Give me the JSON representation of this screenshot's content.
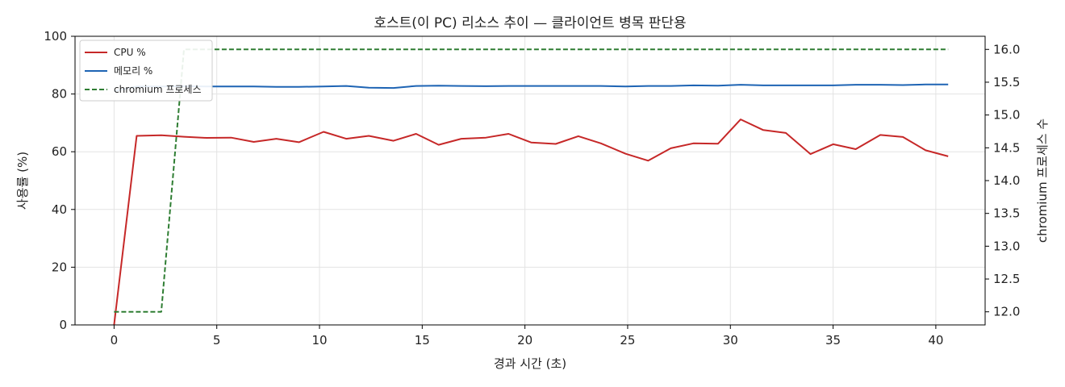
{
  "chart_data": {
    "type": "line",
    "title": "호스트(이 PC) 리소스 추이 — 클라이언트 병목 판단용",
    "xlabel": "경과 시간 (초)",
    "ylabel": "사용률 (%)",
    "y2label": "chromium 프로세스 수",
    "xlim": [
      -1.9,
      42.4
    ],
    "ylim": [
      0,
      100
    ],
    "y2lim": [
      11.8,
      16.2
    ],
    "xticks": [
      0,
      5,
      10,
      15,
      20,
      25,
      30,
      35,
      40
    ],
    "yticks": [
      0,
      20,
      40,
      60,
      80,
      100
    ],
    "y2ticks": [
      12.0,
      12.5,
      13.0,
      13.5,
      14.0,
      14.5,
      15.0,
      15.5,
      16.0
    ],
    "y2tick_labels": [
      "12.0",
      "12.5",
      "13.0",
      "13.5",
      "14.0",
      "14.5",
      "15.0",
      "15.5",
      "16.0"
    ],
    "grid": true,
    "legend_position": "top-left",
    "x": [
      0.0,
      1.1,
      2.3,
      3.4,
      4.5,
      5.7,
      6.8,
      7.9,
      9.0,
      10.2,
      11.3,
      12.4,
      13.6,
      14.7,
      15.8,
      16.9,
      18.1,
      19.2,
      20.3,
      21.5,
      22.6,
      23.7,
      24.9,
      26.0,
      27.1,
      28.2,
      29.4,
      30.5,
      31.6,
      32.7,
      33.9,
      35.0,
      36.1,
      37.3,
      38.4,
      39.5,
      40.6
    ],
    "series": [
      {
        "name": "CPU %",
        "axis": "left",
        "color": "#c62828",
        "style": "solid",
        "values": [
          0.0,
          65.5,
          65.7,
          65.2,
          64.8,
          64.9,
          63.4,
          64.5,
          63.3,
          66.9,
          64.5,
          65.5,
          63.8,
          66.2,
          62.4,
          64.5,
          64.9,
          66.2,
          63.2,
          62.7,
          65.4,
          62.9,
          59.3,
          56.9,
          61.2,
          62.9,
          62.8,
          71.2,
          67.5,
          66.5,
          59.2,
          62.6,
          60.9,
          65.8,
          65.1,
          60.5,
          58.4
        ]
      },
      {
        "name": "메모리 %",
        "axis": "left",
        "color": "#1e64b4",
        "style": "solid",
        "values": [
          81.0,
          82.6,
          82.6,
          82.7,
          82.6,
          82.6,
          82.6,
          82.5,
          82.5,
          82.6,
          82.8,
          82.2,
          82.1,
          82.8,
          82.9,
          82.8,
          82.7,
          82.8,
          82.8,
          82.8,
          82.8,
          82.8,
          82.6,
          82.8,
          82.8,
          83.0,
          82.9,
          83.2,
          83.0,
          83.0,
          83.0,
          83.0,
          83.2,
          83.2,
          83.1,
          83.3,
          83.3
        ]
      },
      {
        "name": "chromium 프로세스",
        "axis": "right",
        "color": "#2e7d32",
        "style": "dashed",
        "values": [
          12,
          12,
          12,
          16,
          16,
          16,
          16,
          16,
          16,
          16,
          16,
          16,
          16,
          16,
          16,
          16,
          16,
          16,
          16,
          16,
          16,
          16,
          16,
          16,
          16,
          16,
          16,
          16,
          16,
          16,
          16,
          16,
          16,
          16,
          16,
          16,
          16
        ]
      }
    ]
  }
}
